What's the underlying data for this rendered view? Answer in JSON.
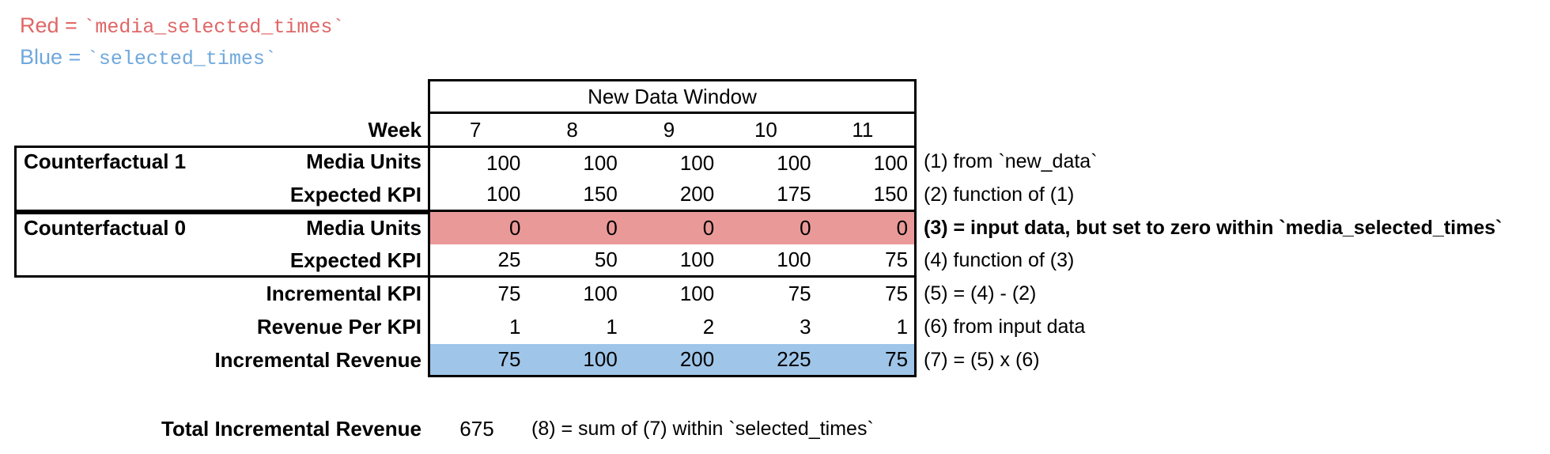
{
  "colors": {
    "red_text": "#e06666",
    "blue_text": "#6fa8dc",
    "red_fill": "#ea9999",
    "blue_fill": "#9fc5e8"
  },
  "legend": {
    "red": {
      "label": "Red =",
      "code": "`media_selected_times`"
    },
    "blue": {
      "label": "Blue =",
      "code": "`selected_times`"
    }
  },
  "table": {
    "header": "New Data Window",
    "week_label": "Week",
    "weeks": [
      "7",
      "8",
      "9",
      "10",
      "11"
    ],
    "groups": [
      {
        "label": "Counterfactual 1"
      },
      {
        "label": "Counterfactual 0"
      }
    ],
    "rows": [
      {
        "label": "Media Units",
        "values": [
          "100",
          "100",
          "100",
          "100",
          "100"
        ],
        "annotation": "(1) from `new_data`"
      },
      {
        "label": "Expected KPI",
        "values": [
          "100",
          "150",
          "200",
          "175",
          "150"
        ],
        "annotation": "(2) function of (1)"
      },
      {
        "label": "Media Units",
        "values": [
          "0",
          "0",
          "0",
          "0",
          "0"
        ],
        "annotation": "(3) = input data, but set to zero within `media_selected_times`",
        "highlight": "red"
      },
      {
        "label": "Expected KPI",
        "values": [
          "25",
          "50",
          "100",
          "100",
          "75"
        ],
        "annotation": "(4) function of (3)"
      },
      {
        "label": "Incremental KPI",
        "values": [
          "75",
          "100",
          "100",
          "75",
          "75"
        ],
        "annotation": "(5) = (4) - (2)"
      },
      {
        "label": "Revenue Per KPI",
        "values": [
          "1",
          "1",
          "2",
          "3",
          "1"
        ],
        "annotation": "(6) from input data"
      },
      {
        "label": "Incremental Revenue",
        "values": [
          "75",
          "100",
          "200",
          "225",
          "75"
        ],
        "annotation": "(7) = (5) x (6)",
        "highlight": "blue"
      }
    ]
  },
  "total": {
    "label": "Total Incremental Revenue",
    "value": "675",
    "annotation": "(8) = sum of (7) within `selected_times`"
  }
}
